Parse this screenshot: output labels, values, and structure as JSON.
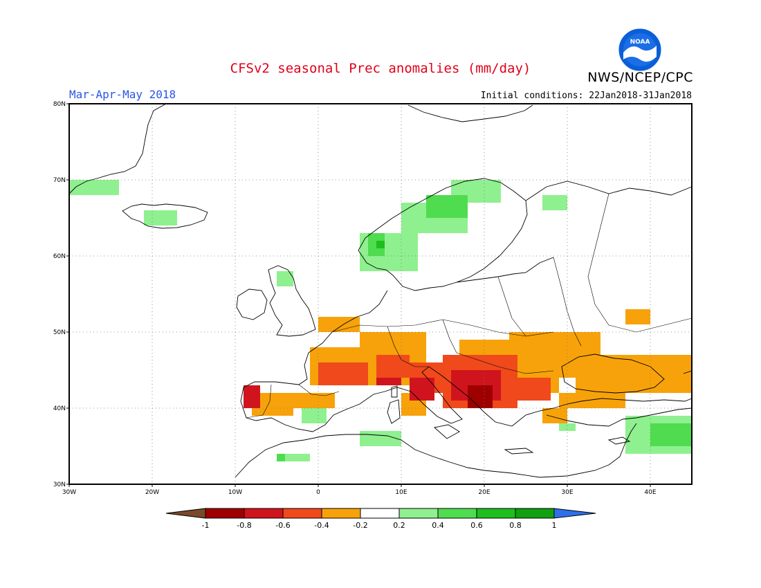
{
  "header": {
    "title": "CFSv2 seasonal Prec anomalies (mm/day)",
    "season": "Mar-Apr-May 2018",
    "initial_conditions": "Initial conditions: 22Jan2018-31Jan2018",
    "agency": "NWS/NCEP/CPC",
    "logo_text": "NOAA",
    "logo_icon": "noaa-logo-icon"
  },
  "map": {
    "projection": "lat-lon",
    "lon_range": [
      -30,
      45
    ],
    "lat_range": [
      30,
      80
    ],
    "gridlines": true,
    "lon_ticks": [
      {
        "value": -30,
        "label": "30W"
      },
      {
        "value": -20,
        "label": "20W"
      },
      {
        "value": -10,
        "label": "10W"
      },
      {
        "value": 0,
        "label": "0"
      },
      {
        "value": 10,
        "label": "10E"
      },
      {
        "value": 20,
        "label": "20E"
      },
      {
        "value": 30,
        "label": "30E"
      },
      {
        "value": 40,
        "label": "40E"
      }
    ],
    "lat_ticks": [
      {
        "value": 30,
        "label": "30N"
      },
      {
        "value": 40,
        "label": "40N"
      },
      {
        "value": 50,
        "label": "50N"
      },
      {
        "value": 60,
        "label": "60N"
      },
      {
        "value": 70,
        "label": "70N"
      },
      {
        "value": 80,
        "label": "80N"
      }
    ],
    "anomaly_regions": [
      {
        "class": "neg_0.2_0.4",
        "lon": [
          -1,
          11
        ],
        "lat": [
          43,
          48
        ]
      },
      {
        "class": "neg_0.2_0.4",
        "lon": [
          5,
          13
        ],
        "lat": [
          46,
          50
        ]
      },
      {
        "class": "neg_0.2_0.4",
        "lon": [
          0,
          5
        ],
        "lat": [
          50,
          52
        ]
      },
      {
        "class": "neg_0.2_0.4",
        "lon": [
          -8,
          -3
        ],
        "lat": [
          39,
          42
        ]
      },
      {
        "class": "neg_0.2_0.4",
        "lon": [
          -3,
          2
        ],
        "lat": [
          40,
          42
        ]
      },
      {
        "class": "neg_0.2_0.4",
        "lon": [
          17,
          29
        ],
        "lat": [
          42,
          49
        ]
      },
      {
        "class": "neg_0.2_0.4",
        "lon": [
          23,
          34
        ],
        "lat": [
          44,
          50
        ]
      },
      {
        "class": "neg_0.2_0.4",
        "lon": [
          31,
          45
        ],
        "lat": [
          42,
          47
        ]
      },
      {
        "class": "neg_0.2_0.4",
        "lon": [
          29,
          37
        ],
        "lat": [
          40,
          42
        ]
      },
      {
        "class": "neg_0.2_0.4",
        "lon": [
          27,
          30
        ],
        "lat": [
          38,
          40
        ]
      },
      {
        "class": "neg_0.2_0.4",
        "lon": [
          37,
          40
        ],
        "lat": [
          51,
          53
        ]
      },
      {
        "class": "neg_0.2_0.4",
        "lon": [
          10,
          13
        ],
        "lat": [
          39,
          42
        ]
      },
      {
        "class": "neg_0.4_0.6",
        "lon": [
          0,
          6
        ],
        "lat": [
          43,
          46
        ]
      },
      {
        "class": "neg_0.4_0.6",
        "lon": [
          11,
          17
        ],
        "lat": [
          42,
          46
        ]
      },
      {
        "class": "neg_0.4_0.6",
        "lon": [
          15,
          24
        ],
        "lat": [
          40,
          47
        ]
      },
      {
        "class": "neg_0.4_0.6",
        "lon": [
          22,
          28
        ],
        "lat": [
          41,
          44
        ]
      },
      {
        "class": "neg_0.4_0.6",
        "lon": [
          7,
          11
        ],
        "lat": [
          44,
          47
        ]
      },
      {
        "class": "neg_0.6_0.8",
        "lon": [
          -9,
          -7
        ],
        "lat": [
          40,
          43
        ]
      },
      {
        "class": "neg_0.6_0.8",
        "lon": [
          7,
          10
        ],
        "lat": [
          43,
          44
        ]
      },
      {
        "class": "neg_0.6_0.8",
        "lon": [
          11,
          14
        ],
        "lat": [
          41,
          44
        ]
      },
      {
        "class": "neg_0.6_0.8",
        "lon": [
          16,
          22
        ],
        "lat": [
          41,
          45
        ]
      },
      {
        "class": "neg_0.8_1",
        "lon": [
          18,
          21
        ],
        "lat": [
          40,
          43
        ]
      },
      {
        "class": "pos_0.2_0.4",
        "lon": [
          -30,
          -24
        ],
        "lat": [
          68,
          70
        ]
      },
      {
        "class": "pos_0.2_0.4",
        "lon": [
          -21,
          -17
        ],
        "lat": [
          64,
          66
        ]
      },
      {
        "class": "pos_0.2_0.4",
        "lon": [
          5,
          12
        ],
        "lat": [
          58,
          63
        ]
      },
      {
        "class": "pos_0.2_0.4",
        "lon": [
          10,
          18
        ],
        "lat": [
          63,
          67
        ]
      },
      {
        "class": "pos_0.2_0.4",
        "lon": [
          16,
          22
        ],
        "lat": [
          67,
          70
        ]
      },
      {
        "class": "pos_0.2_0.4",
        "lon": [
          27,
          30
        ],
        "lat": [
          66,
          68
        ]
      },
      {
        "class": "pos_0.2_0.4",
        "lon": [
          -5,
          -3
        ],
        "lat": [
          56,
          58
        ]
      },
      {
        "class": "pos_0.2_0.4",
        "lon": [
          -2,
          1
        ],
        "lat": [
          38,
          40
        ]
      },
      {
        "class": "pos_0.2_0.4",
        "lon": [
          5,
          10
        ],
        "lat": [
          35,
          37
        ]
      },
      {
        "class": "pos_0.2_0.4",
        "lon": [
          -5,
          -1
        ],
        "lat": [
          33,
          34
        ]
      },
      {
        "class": "pos_0.2_0.4",
        "lon": [
          37,
          45
        ],
        "lat": [
          34,
          39
        ]
      },
      {
        "class": "pos_0.2_0.4",
        "lon": [
          29,
          31
        ],
        "lat": [
          37,
          38
        ]
      },
      {
        "class": "pos_0.4_0.6",
        "lon": [
          6,
          8
        ],
        "lat": [
          60,
          63
        ]
      },
      {
        "class": "pos_0.4_0.6",
        "lon": [
          13,
          18
        ],
        "lat": [
          65,
          68
        ]
      },
      {
        "class": "pos_0.4_0.6",
        "lon": [
          40,
          45
        ],
        "lat": [
          35,
          38
        ]
      },
      {
        "class": "pos_0.4_0.6",
        "lon": [
          -5,
          -4
        ],
        "lat": [
          33,
          34
        ]
      },
      {
        "class": "pos_0.6_0.8",
        "lon": [
          7,
          8
        ],
        "lat": [
          61,
          62
        ]
      }
    ]
  },
  "colorbar": {
    "ticks": [
      "-1",
      "-0.8",
      "-0.6",
      "-0.4",
      "-0.2",
      "0.2",
      "0.4",
      "0.6",
      "0.8",
      "1"
    ],
    "colors": {
      "lt_-1": "#7a4a2a",
      "neg_0.8_1": "#9e0000",
      "neg_0.6_0.8": "#d0141e",
      "neg_0.4_0.6": "#f0491b",
      "neg_0.2_0.4": "#f7a20a",
      "near_zero": "#ffffff",
      "pos_0.2_0.4": "#8ff08f",
      "pos_0.4_0.6": "#4fdc4f",
      "pos_0.6_0.8": "#1ebe1e",
      "pos_0.8_1": "#10a010",
      "gt_1": "#2f6fe8"
    }
  }
}
